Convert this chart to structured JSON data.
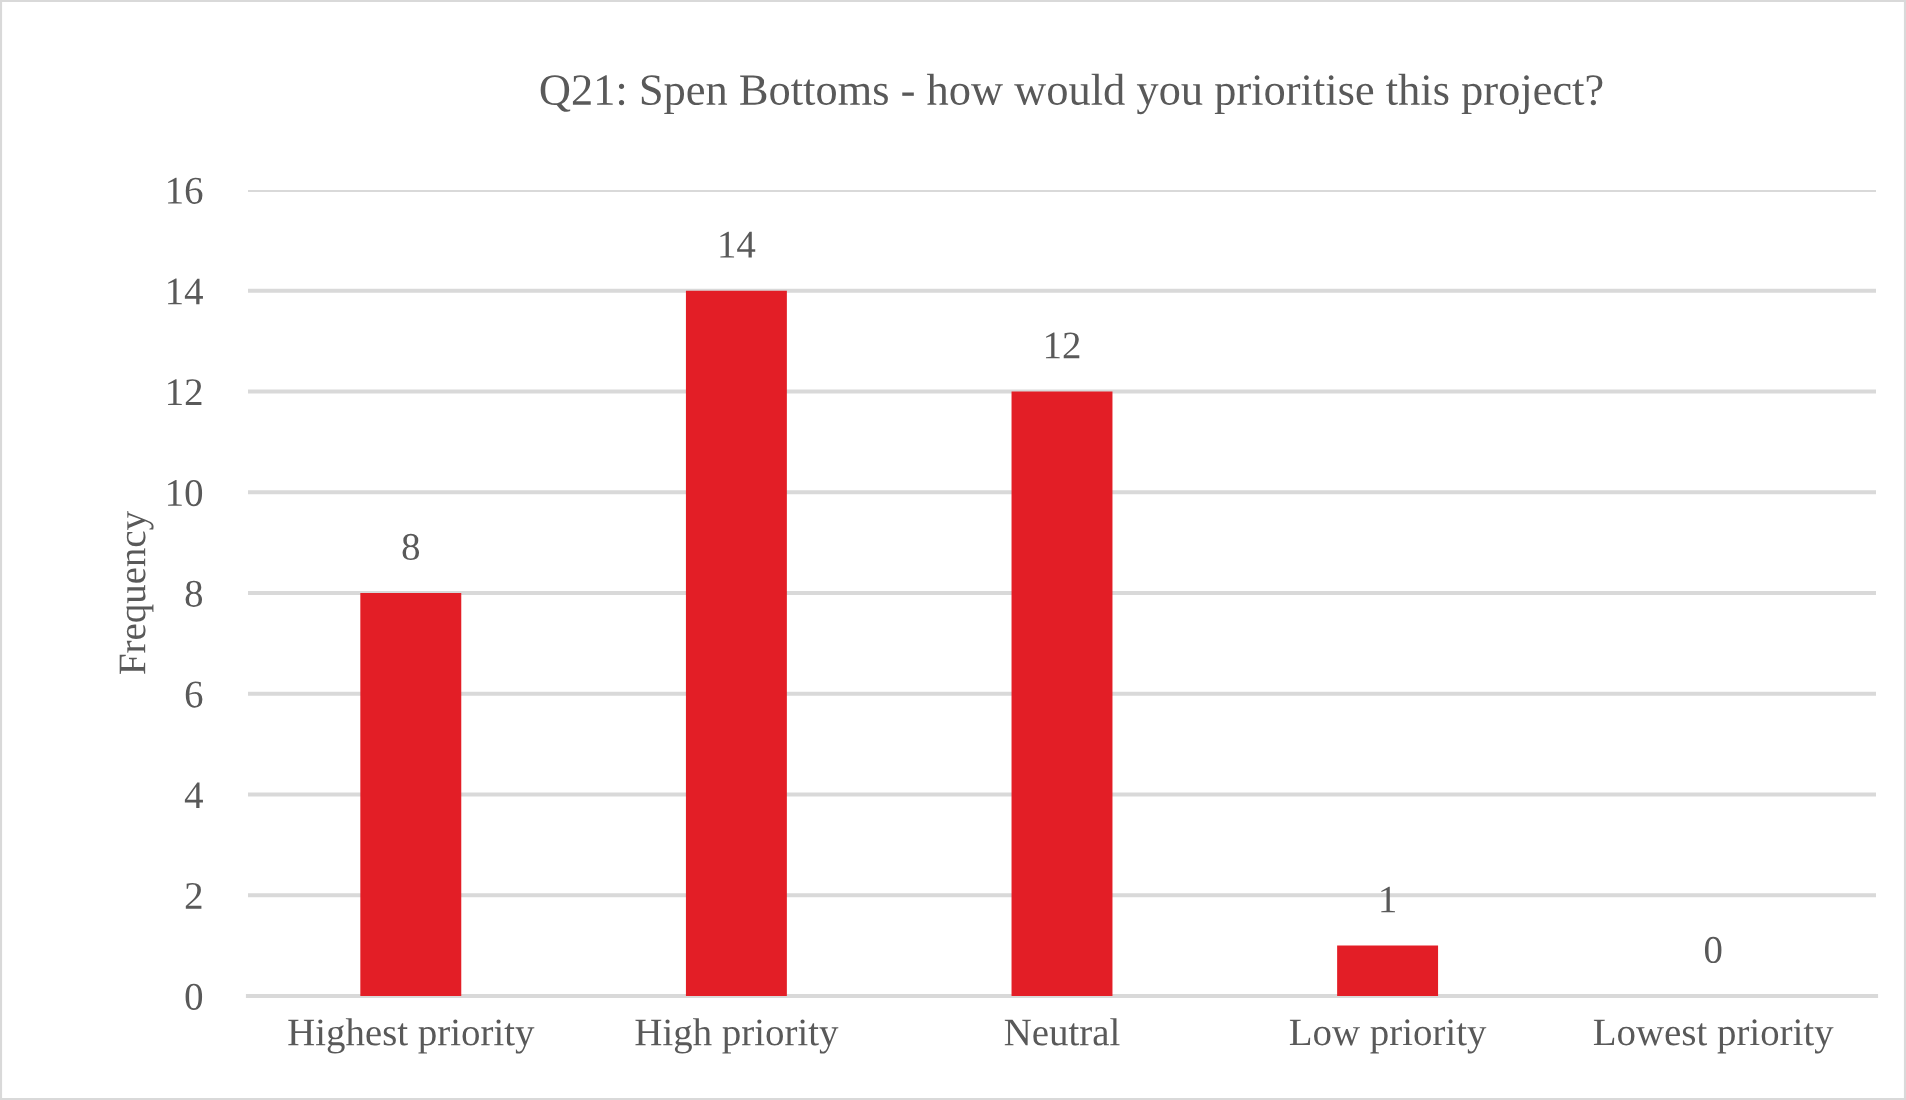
{
  "chart_data": {
    "type": "bar",
    "title": "Q21: Spen Bottoms - how would you prioritise this project?",
    "ylabel": "Frequency",
    "categories": [
      "Highest priority",
      "High priority",
      "Neutral",
      "Low priority",
      "Lowest priority"
    ],
    "values": [
      8,
      14,
      12,
      1,
      0
    ],
    "color": "#e31e26",
    "ylim": [
      0,
      16
    ],
    "yticks": [
      0,
      2,
      4,
      6,
      8,
      10,
      12,
      14,
      16
    ],
    "grid": "y",
    "data_labels": true
  }
}
